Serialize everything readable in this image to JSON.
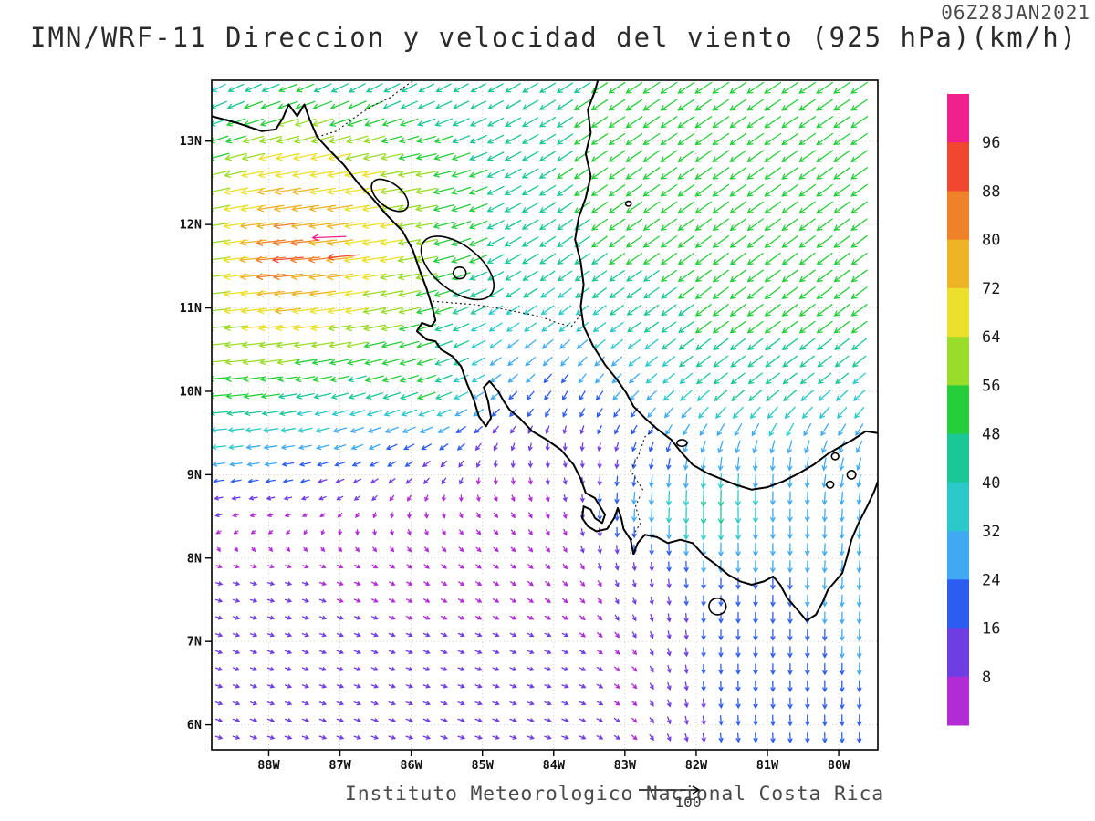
{
  "header": {
    "title": "IMN/WRF-11 Direccion y velocidad del viento (925 hPa)(km/h)",
    "timestamp": "06Z28JAN2021"
  },
  "footer": {
    "caption": "Instituto Meteorologico Nacional Costa Rica",
    "reference_value": "100"
  },
  "chart_data": {
    "type": "vector-field-map",
    "title": "IMN/WRF-11 Direccion y velocidad del viento (925 hPa)(km/h)",
    "valid_time": "06Z28JAN2021",
    "unit": "km/h",
    "level": "925 hPa",
    "map_bounds": {
      "lon_west": 88.8,
      "lon_east": 79.45,
      "lat_north": 13.73,
      "lat_south": 5.7
    },
    "axes": {
      "lat_ticks": [
        {
          "label": "13N",
          "value": 13
        },
        {
          "label": "12N",
          "value": 12
        },
        {
          "label": "11N",
          "value": 11
        },
        {
          "label": "10N",
          "value": 10
        },
        {
          "label": "9N",
          "value": 9
        },
        {
          "label": "8N",
          "value": 8
        },
        {
          "label": "7N",
          "value": 7
        },
        {
          "label": "6N",
          "value": 6
        }
      ],
      "lon_ticks": [
        {
          "label": "88W",
          "value": 88
        },
        {
          "label": "87W",
          "value": 87
        },
        {
          "label": "86W",
          "value": 86
        },
        {
          "label": "85W",
          "value": 85
        },
        {
          "label": "84W",
          "value": 84
        },
        {
          "label": "83W",
          "value": 83
        },
        {
          "label": "82W",
          "value": 82
        },
        {
          "label": "81W",
          "value": 81
        },
        {
          "label": "80W",
          "value": 80
        }
      ]
    },
    "colorbar": {
      "unit": "km/h",
      "levels": [
        8,
        16,
        24,
        32,
        40,
        48,
        56,
        64,
        72,
        80,
        88,
        96
      ],
      "colors": [
        "#B22CD6",
        "#6F3EE2",
        "#2D5CF0",
        "#3FAAF2",
        "#2BC9C9",
        "#1BC795",
        "#27CE3C",
        "#9ADC2A",
        "#EDE02C",
        "#EFB326",
        "#F0812B",
        "#F1472E",
        "#F0218C"
      ]
    },
    "reference_vector": {
      "value": 100,
      "label": "100"
    },
    "wind_grid": {
      "note": "u eastward km/h, v northward km/h, rows = lats ascending, cols = lons (deg W) ascending",
      "lons": [
        79.5,
        80.8,
        81.8,
        82.8,
        83.8,
        84.8,
        85.8,
        86.8,
        87.8,
        88.8
      ],
      "lats": [
        5.7,
        6.8,
        7.8,
        8.6,
        9.2,
        10.0,
        10.8,
        11.6,
        12.6,
        13.7
      ],
      "u": [
        [
          0,
          1,
          2,
          6,
          9,
          9,
          9,
          9,
          9,
          9
        ],
        [
          0,
          0,
          0,
          5,
          8,
          8,
          8,
          8,
          8,
          8
        ],
        [
          -2,
          0,
          0,
          2,
          5,
          6,
          6,
          7,
          8,
          8
        ],
        [
          -2,
          0,
          0,
          -2,
          2,
          4,
          0,
          -4,
          -8,
          -10
        ],
        [
          -10,
          -2,
          -4,
          -4,
          2,
          -2,
          -14,
          -20,
          -26,
          -30
        ],
        [
          -26,
          -34,
          -32,
          -20,
          -10,
          -20,
          -48,
          -42,
          -48,
          -54
        ],
        [
          -40,
          -40,
          -40,
          -34,
          -26,
          -30,
          -50,
          -62,
          -68,
          -60
        ],
        [
          -40,
          -40,
          -40,
          -40,
          -38,
          -42,
          -58,
          -72,
          -90,
          -60
        ],
        [
          -42,
          -42,
          -42,
          -42,
          -40,
          -42,
          -56,
          -68,
          -70,
          -58
        ],
        [
          -42,
          -42,
          -42,
          -42,
          -40,
          -36,
          -36,
          -40,
          -45,
          -32
        ]
      ],
      "v": [
        [
          -22,
          -20,
          -16,
          -5,
          -3,
          -3,
          -3,
          -3,
          -3,
          -3
        ],
        [
          -25,
          -22,
          -18,
          -6,
          -3,
          -3,
          -3,
          -3,
          -3,
          -3
        ],
        [
          -26,
          -24,
          -22,
          -10,
          -5,
          -4,
          -4,
          -3,
          -2,
          -2
        ],
        [
          -28,
          -28,
          -48,
          -30,
          -8,
          -5,
          -6,
          -4,
          -2,
          -2
        ],
        [
          -26,
          -30,
          -26,
          -16,
          -8,
          -10,
          -10,
          -8,
          -4,
          -4
        ],
        [
          -24,
          -26,
          -26,
          -20,
          -18,
          -16,
          -16,
          -12,
          -8,
          -4
        ],
        [
          -30,
          -30,
          -30,
          -24,
          -20,
          -20,
          -14,
          -10,
          -8,
          -6
        ],
        [
          -30,
          -30,
          -30,
          -28,
          -27,
          -22,
          -12,
          -10,
          -8,
          -8
        ],
        [
          -30,
          -30,
          -30,
          -30,
          -27,
          -20,
          -10,
          -12,
          -13,
          -14
        ],
        [
          -28,
          -28,
          -28,
          -28,
          -25,
          -20,
          -20,
          -22,
          -18,
          -18
        ]
      ]
    },
    "highlight_arrows": [
      {
        "lon": 87.15,
        "lat": 11.85,
        "u": -98,
        "v": -4
      },
      {
        "lon": 86.95,
        "lat": 11.62,
        "u": -90,
        "v": -8
      }
    ],
    "coastlines": {
      "segments": [
        {
          "name": "pacific-mainland",
          "points": [
            [
              88.8,
              13.3
            ],
            [
              88.45,
              13.22
            ],
            [
              88.1,
              13.12
            ],
            [
              87.9,
              13.14
            ],
            [
              87.8,
              13.28
            ],
            [
              87.72,
              13.44
            ],
            [
              87.6,
              13.3
            ],
            [
              87.5,
              13.44
            ],
            [
              87.42,
              13.25
            ],
            [
              87.32,
              13.05
            ],
            [
              87.18,
              12.92
            ],
            [
              86.95,
              12.72
            ],
            [
              86.75,
              12.5
            ],
            [
              86.55,
              12.32
            ],
            [
              86.35,
              12.12
            ],
            [
              86.12,
              11.92
            ],
            [
              85.98,
              11.7
            ],
            [
              85.88,
              11.45
            ],
            [
              85.78,
              11.22
            ],
            [
              85.7,
              11.0
            ],
            [
              85.66,
              10.85
            ],
            [
              85.72,
              10.78
            ],
            [
              85.85,
              10.82
            ],
            [
              85.92,
              10.72
            ],
            [
              85.78,
              10.62
            ],
            [
              85.66,
              10.6
            ],
            [
              85.58,
              10.5
            ],
            [
              85.42,
              10.42
            ],
            [
              85.3,
              10.3
            ],
            [
              85.22,
              10.1
            ],
            [
              85.12,
              9.9
            ],
            [
              85.05,
              9.7
            ],
            [
              84.95,
              9.58
            ],
            [
              84.88,
              9.68
            ],
            [
              84.92,
              9.88
            ],
            [
              84.98,
              10.05
            ],
            [
              84.9,
              10.12
            ],
            [
              84.78,
              10.0
            ],
            [
              84.7,
              9.88
            ],
            [
              84.62,
              9.78
            ],
            [
              84.48,
              9.68
            ],
            [
              84.3,
              9.52
            ],
            [
              84.1,
              9.42
            ],
            [
              83.9,
              9.3
            ],
            [
              83.72,
              9.12
            ],
            [
              83.62,
              8.95
            ],
            [
              83.55,
              8.78
            ],
            [
              83.42,
              8.72
            ],
            [
              83.35,
              8.62
            ],
            [
              83.28,
              8.52
            ],
            [
              83.32,
              8.42
            ],
            [
              83.42,
              8.48
            ],
            [
              83.48,
              8.58
            ],
            [
              83.58,
              8.62
            ],
            [
              83.6,
              8.48
            ],
            [
              83.52,
              8.38
            ],
            [
              83.4,
              8.32
            ],
            [
              83.25,
              8.35
            ],
            [
              83.15,
              8.48
            ],
            [
              83.1,
              8.6
            ],
            [
              83.05,
              8.48
            ],
            [
              83.02,
              8.35
            ],
            [
              82.92,
              8.22
            ],
            [
              82.88,
              8.05
            ],
            [
              82.82,
              8.18
            ],
            [
              82.72,
              8.28
            ],
            [
              82.55,
              8.25
            ],
            [
              82.4,
              8.18
            ],
            [
              82.22,
              8.22
            ],
            [
              82.05,
              8.18
            ],
            [
              81.88,
              8.02
            ],
            [
              81.72,
              7.92
            ],
            [
              81.55,
              7.8
            ],
            [
              81.38,
              7.72
            ],
            [
              81.22,
              7.68
            ],
            [
              81.05,
              7.72
            ],
            [
              80.92,
              7.78
            ],
            [
              80.82,
              7.68
            ],
            [
              80.72,
              7.52
            ],
            [
              80.58,
              7.38
            ],
            [
              80.45,
              7.25
            ],
            [
              80.32,
              7.32
            ],
            [
              80.22,
              7.48
            ],
            [
              80.15,
              7.62
            ],
            [
              80.05,
              7.72
            ],
            [
              79.95,
              7.82
            ],
            [
              79.88,
              8.02
            ],
            [
              79.82,
              8.22
            ],
            [
              79.72,
              8.42
            ],
            [
              79.6,
              8.62
            ],
            [
              79.5,
              8.8
            ],
            [
              79.45,
              8.92
            ]
          ]
        },
        {
          "name": "caribbean-coast",
          "points": [
            [
              79.45,
              9.5
            ],
            [
              79.62,
              9.52
            ],
            [
              79.8,
              9.42
            ],
            [
              79.95,
              9.35
            ],
            [
              80.15,
              9.25
            ],
            [
              80.35,
              9.12
            ],
            [
              80.55,
              9.02
            ],
            [
              80.78,
              8.92
            ],
            [
              81.0,
              8.85
            ],
            [
              81.22,
              8.82
            ],
            [
              81.45,
              8.88
            ],
            [
              81.65,
              8.95
            ],
            [
              81.85,
              9.02
            ],
            [
              82.05,
              9.12
            ],
            [
              82.22,
              9.28
            ],
            [
              82.35,
              9.42
            ],
            [
              82.55,
              9.55
            ],
            [
              82.72,
              9.68
            ],
            [
              82.88,
              9.82
            ],
            [
              82.98,
              9.98
            ],
            [
              83.12,
              10.15
            ],
            [
              83.28,
              10.32
            ],
            [
              83.45,
              10.55
            ],
            [
              83.58,
              10.78
            ],
            [
              83.62,
              11.02
            ],
            [
              83.58,
              11.28
            ],
            [
              83.62,
              11.55
            ],
            [
              83.7,
              11.82
            ],
            [
              83.65,
              12.08
            ],
            [
              83.55,
              12.32
            ],
            [
              83.48,
              12.58
            ],
            [
              83.55,
              12.85
            ],
            [
              83.48,
              13.1
            ],
            [
              83.52,
              13.38
            ],
            [
              83.42,
              13.6
            ],
            [
              83.38,
              13.73
            ]
          ]
        }
      ],
      "borders": [
        {
          "name": "nicaragua-honduras",
          "points": [
            [
              87.32,
              13.05
            ],
            [
              87.05,
              13.12
            ],
            [
              86.8,
              13.28
            ],
            [
              86.55,
              13.42
            ],
            [
              86.3,
              13.52
            ],
            [
              86.05,
              13.68
            ],
            [
              85.95,
              13.73
            ]
          ]
        },
        {
          "name": "nicaragua-costa-rica",
          "points": [
            [
              85.7,
              11.08
            ],
            [
              85.4,
              11.06
            ],
            [
              85.1,
              11.04
            ],
            [
              84.8,
              11.0
            ],
            [
              84.5,
              10.95
            ],
            [
              84.2,
              10.9
            ],
            [
              83.95,
              10.82
            ],
            [
              83.75,
              10.78
            ],
            [
              83.62,
              10.92
            ]
          ]
        },
        {
          "name": "costa-rica-panama",
          "points": [
            [
              82.92,
              8.05
            ],
            [
              82.9,
              8.25
            ],
            [
              82.78,
              8.42
            ],
            [
              82.85,
              8.62
            ],
            [
              82.75,
              8.82
            ],
            [
              82.92,
              9.05
            ],
            [
              82.8,
              9.25
            ],
            [
              82.72,
              9.45
            ],
            [
              82.6,
              9.55
            ]
          ]
        }
      ],
      "lakes_islands": [
        {
          "name": "lake-nicaragua",
          "lon": 85.35,
          "lat": 11.48,
          "rx": 0.6,
          "ry": 0.27,
          "rot": 38
        },
        {
          "name": "lake-managua",
          "lon": 86.3,
          "lat": 12.35,
          "rx": 0.3,
          "ry": 0.14,
          "rot": 38
        },
        {
          "name": "ometepe-island",
          "lon": 85.32,
          "lat": 11.42,
          "rx": 0.09,
          "ry": 0.07,
          "rot": 0
        },
        {
          "name": "coiba-island",
          "lon": 81.7,
          "lat": 7.42,
          "rx": 0.12,
          "ry": 0.1,
          "rot": 20
        },
        {
          "name": "bocas-islands",
          "lon": 82.2,
          "lat": 9.38,
          "rx": 0.07,
          "ry": 0.04,
          "rot": 0
        },
        {
          "name": "corn-island",
          "lon": 82.95,
          "lat": 12.25,
          "rx": 0.04,
          "ry": 0.03,
          "rot": 0
        },
        {
          "name": "taboga-islands",
          "lon": 80.05,
          "lat": 9.22,
          "rx": 0.05,
          "ry": 0.04,
          "rot": 0
        },
        {
          "name": "pearl-islands-a",
          "lon": 79.82,
          "lat": 9.0,
          "rx": 0.06,
          "ry": 0.05,
          "rot": 0
        },
        {
          "name": "pearl-islands-b",
          "lon": 80.12,
          "lat": 8.88,
          "rx": 0.05,
          "ry": 0.04,
          "rot": 0
        }
      ]
    }
  }
}
